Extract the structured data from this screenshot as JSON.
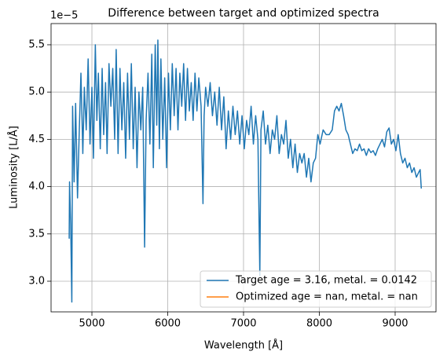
{
  "chart_data": {
    "type": "line",
    "title": "Difference between target and optimized spectra",
    "xlabel": "Wavelength [Å]",
    "ylabel": "Luminosity [L/Å]",
    "y_offset_label": "1e−5",
    "xlim": [
      4461,
      9539
    ],
    "xticks": [
      5000,
      6000,
      7000,
      8000,
      9000
    ],
    "ylim": [
      2.676,
      5.724
    ],
    "yticks": [
      {
        "value": 3,
        "label": "3.0"
      },
      {
        "value": 3.5,
        "label": "3.5"
      },
      {
        "value": 4,
        "label": "4.0"
      },
      {
        "value": 4.5,
        "label": "4.5"
      },
      {
        "value": 5,
        "label": "5.0"
      },
      {
        "value": 5.5,
        "label": "5.5"
      }
    ],
    "grid": true,
    "legend": "lower right",
    "series": [
      {
        "name": "Target age = 3.16, metal. = 0.0142",
        "color": "#1f77b4",
        "x": [
          4700,
          4705,
          4720,
          4735,
          4745,
          4765,
          4785,
          4810,
          4830,
          4855,
          4880,
          4900,
          4925,
          4950,
          4975,
          5000,
          5020,
          5045,
          5065,
          5085,
          5110,
          5135,
          5155,
          5180,
          5200,
          5225,
          5250,
          5275,
          5300,
          5320,
          5345,
          5370,
          5395,
          5420,
          5445,
          5470,
          5495,
          5520,
          5545,
          5570,
          5595,
          5620,
          5645,
          5670,
          5695,
          5715,
          5740,
          5765,
          5790,
          5810,
          5835,
          5855,
          5870,
          5890,
          5910,
          5935,
          5960,
          5985,
          6010,
          6035,
          6060,
          6085,
          6110,
          6135,
          6160,
          6185,
          6210,
          6235,
          6260,
          6285,
          6310,
          6335,
          6360,
          6385,
          6410,
          6440,
          6465,
          6480,
          6500,
          6530,
          6560,
          6590,
          6620,
          6650,
          6680,
          6710,
          6740,
          6770,
          6800,
          6830,
          6860,
          6890,
          6920,
          6950,
          6980,
          7010,
          7040,
          7070,
          7100,
          7130,
          7160,
          7190,
          7215,
          7230,
          7260,
          7290,
          7320,
          7350,
          7380,
          7410,
          7440,
          7470,
          7500,
          7530,
          7560,
          7590,
          7620,
          7650,
          7680,
          7710,
          7740,
          7770,
          7800,
          7830,
          7860,
          7890,
          7920,
          7950,
          7980,
          8010,
          8050,
          8090,
          8130,
          8170,
          8200,
          8230,
          8260,
          8290,
          8320,
          8350,
          8380,
          8410,
          8440,
          8470,
          8500,
          8530,
          8560,
          8590,
          8620,
          8650,
          8680,
          8710,
          8740,
          8770,
          8800,
          8830,
          8860,
          8890,
          8920,
          8950,
          8980,
          9010,
          9040,
          9070,
          9100,
          9130,
          9160,
          9190,
          9220,
          9250,
          9280,
          9310,
          9330,
          9345
        ],
        "values": [
          3.45,
          4.05,
          3.6,
          2.78,
          4.85,
          4.05,
          4.88,
          3.88,
          4.5,
          5.2,
          4.35,
          5.05,
          4.6,
          5.35,
          4.45,
          5.05,
          4.3,
          5.5,
          4.7,
          5.2,
          4.4,
          5.25,
          4.55,
          5.1,
          4.35,
          5.3,
          4.85,
          5.25,
          4.5,
          5.45,
          4.35,
          5.25,
          4.6,
          5.1,
          4.3,
          5.2,
          4.5,
          5.3,
          4.4,
          5.05,
          4.2,
          5.0,
          4.6,
          5.05,
          3.36,
          4.7,
          5.2,
          4.45,
          5.4,
          4.2,
          5.5,
          4.65,
          5.55,
          4.4,
          5.35,
          4.5,
          5.15,
          4.2,
          5.2,
          4.6,
          5.3,
          4.75,
          5.25,
          4.6,
          5.2,
          4.85,
          5.3,
          4.7,
          5.25,
          4.8,
          5.1,
          4.7,
          5.2,
          4.8,
          5.15,
          4.85,
          3.82,
          4.75,
          5.05,
          4.85,
          5.1,
          4.75,
          5.0,
          4.65,
          5.05,
          4.6,
          4.95,
          4.4,
          4.8,
          4.5,
          4.85,
          4.55,
          4.8,
          4.45,
          4.75,
          4.4,
          4.7,
          4.55,
          4.85,
          4.45,
          4.75,
          4.5,
          3.06,
          4.6,
          4.8,
          4.45,
          4.65,
          4.35,
          4.6,
          4.5,
          4.75,
          4.35,
          4.55,
          4.45,
          4.7,
          4.3,
          4.5,
          4.2,
          4.45,
          4.15,
          4.35,
          4.25,
          4.35,
          4.1,
          4.3,
          4.05,
          4.25,
          4.3,
          4.55,
          4.45,
          4.6,
          4.55,
          4.55,
          4.6,
          4.8,
          4.85,
          4.8,
          4.88,
          4.75,
          4.6,
          4.55,
          4.45,
          4.35,
          4.4,
          4.38,
          4.45,
          4.38,
          4.4,
          4.33,
          4.4,
          4.36,
          4.38,
          4.33,
          4.4,
          4.45,
          4.5,
          4.42,
          4.58,
          4.62,
          4.45,
          4.5,
          4.38,
          4.55,
          4.35,
          4.25,
          4.3,
          4.2,
          4.25,
          4.15,
          4.2,
          4.1,
          4.15,
          4.18,
          3.98
        ]
      },
      {
        "name": "Optimized age = nan, metal. = nan",
        "color": "#ff7f0e",
        "x": [],
        "values": []
      }
    ]
  }
}
